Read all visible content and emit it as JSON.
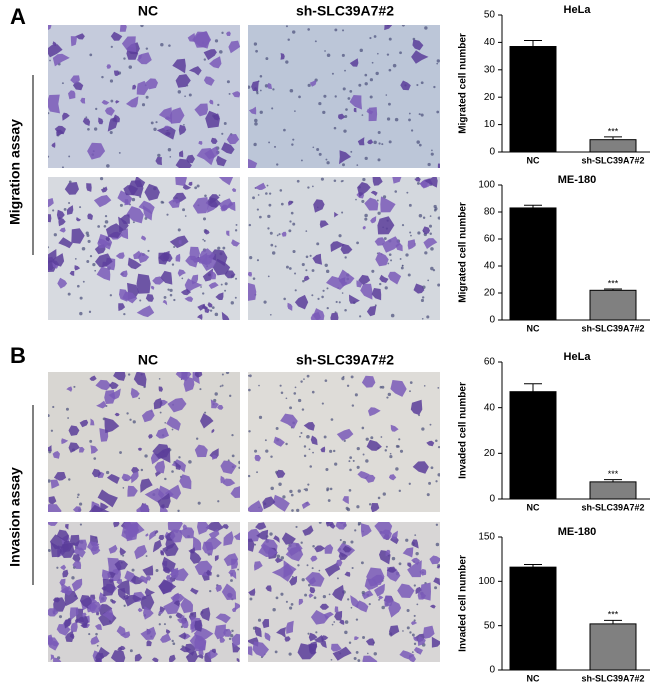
{
  "panels": [
    {
      "label": "A",
      "columns": [
        "NC",
        "sh-SLC39A7#2"
      ],
      "row_label": "Migration assay"
    },
    {
      "label": "B",
      "columns": [
        "NC",
        "sh-SLC39A7#2"
      ],
      "row_label": "Invasion assay"
    }
  ],
  "chart_data": [
    {
      "type": "bar",
      "title": "HeLa",
      "ylabel": "Migrated cell number",
      "categories": [
        "NC",
        "sh-SLC39A7#2"
      ],
      "values": [
        38.5,
        4.5
      ],
      "errors": [
        2.2,
        1
      ],
      "colors": [
        "#000000",
        "#808080"
      ],
      "significance_labels": [
        null,
        "***"
      ],
      "ylim": [
        0,
        50
      ],
      "yticks": [
        0,
        10,
        20,
        30,
        40,
        50
      ]
    },
    {
      "type": "bar",
      "title": "ME-180",
      "ylabel": "Migrated cell number",
      "categories": [
        "NC",
        "sh-SLC39A7#2"
      ],
      "values": [
        83,
        22
      ],
      "errors": [
        2,
        1
      ],
      "colors": [
        "#000000",
        "#808080"
      ],
      "significance_labels": [
        null,
        "***"
      ],
      "ylim": [
        0,
        100
      ],
      "yticks": [
        0,
        20,
        40,
        60,
        80,
        100
      ]
    },
    {
      "type": "bar",
      "title": "HeLa",
      "ylabel": "Invaded cell number",
      "categories": [
        "NC",
        "sh-SLC39A7#2"
      ],
      "values": [
        47,
        7.5
      ],
      "errors": [
        3.5,
        1
      ],
      "colors": [
        "#000000",
        "#808080"
      ],
      "significance_labels": [
        null,
        "***"
      ],
      "ylim": [
        0,
        60
      ],
      "yticks": [
        0,
        20,
        40,
        60
      ]
    },
    {
      "type": "bar",
      "title": "ME-180",
      "ylabel": "Invaded cell number",
      "categories": [
        "NC",
        "sh-SLC39A7#2"
      ],
      "values": [
        116,
        52
      ],
      "errors": [
        3,
        4
      ],
      "colors": [
        "#000000",
        "#808080"
      ],
      "significance_labels": [
        null,
        "***"
      ],
      "ylim": [
        0,
        150
      ],
      "yticks": [
        0,
        50,
        100,
        150
      ]
    }
  ]
}
